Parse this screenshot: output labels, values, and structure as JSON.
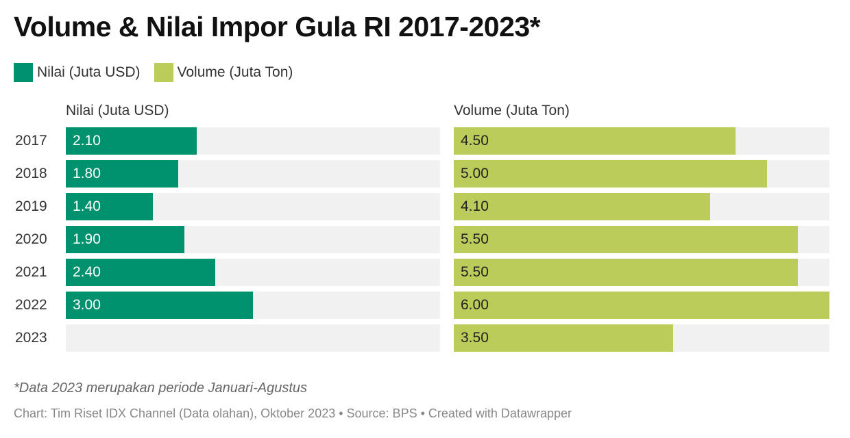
{
  "title": "Volume & Nilai Impor Gula RI 2017-2023*",
  "legend": [
    {
      "label": "Nilai (Juta USD)",
      "color": "#00916f"
    },
    {
      "label": "Volume (Juta Ton)",
      "color": "#bbcc5b"
    }
  ],
  "note": "*Data 2023 merupakan periode Januari-Agustus",
  "footer": "Chart: Tim Riset IDX Channel (Data olahan), Oktober 2023 • Source: BPS • Created with Datawrapper",
  "chart_data": {
    "type": "bar",
    "orientation": "horizontal",
    "categories": [
      "2017",
      "2018",
      "2019",
      "2020",
      "2021",
      "2022",
      "2023"
    ],
    "xlim": [
      0,
      6
    ],
    "series": [
      {
        "name": "Nilai (Juta USD)",
        "color": "#00916f",
        "text_color": "#ffffff",
        "values": [
          2.1,
          1.8,
          1.4,
          1.9,
          2.4,
          3.0,
          null
        ],
        "labels": [
          "2.10",
          "1.80",
          "1.40",
          "1.90",
          "2.40",
          "3.00",
          ""
        ]
      },
      {
        "name": "Volume (Juta Ton)",
        "color": "#bbcc5b",
        "text_color": "#222222",
        "values": [
          4.5,
          5.0,
          4.1,
          5.5,
          5.5,
          6.0,
          3.5
        ],
        "labels": [
          "4.50",
          "5.00",
          "4.10",
          "5.50",
          "5.50",
          "6.00",
          "3.50"
        ]
      }
    ]
  }
}
